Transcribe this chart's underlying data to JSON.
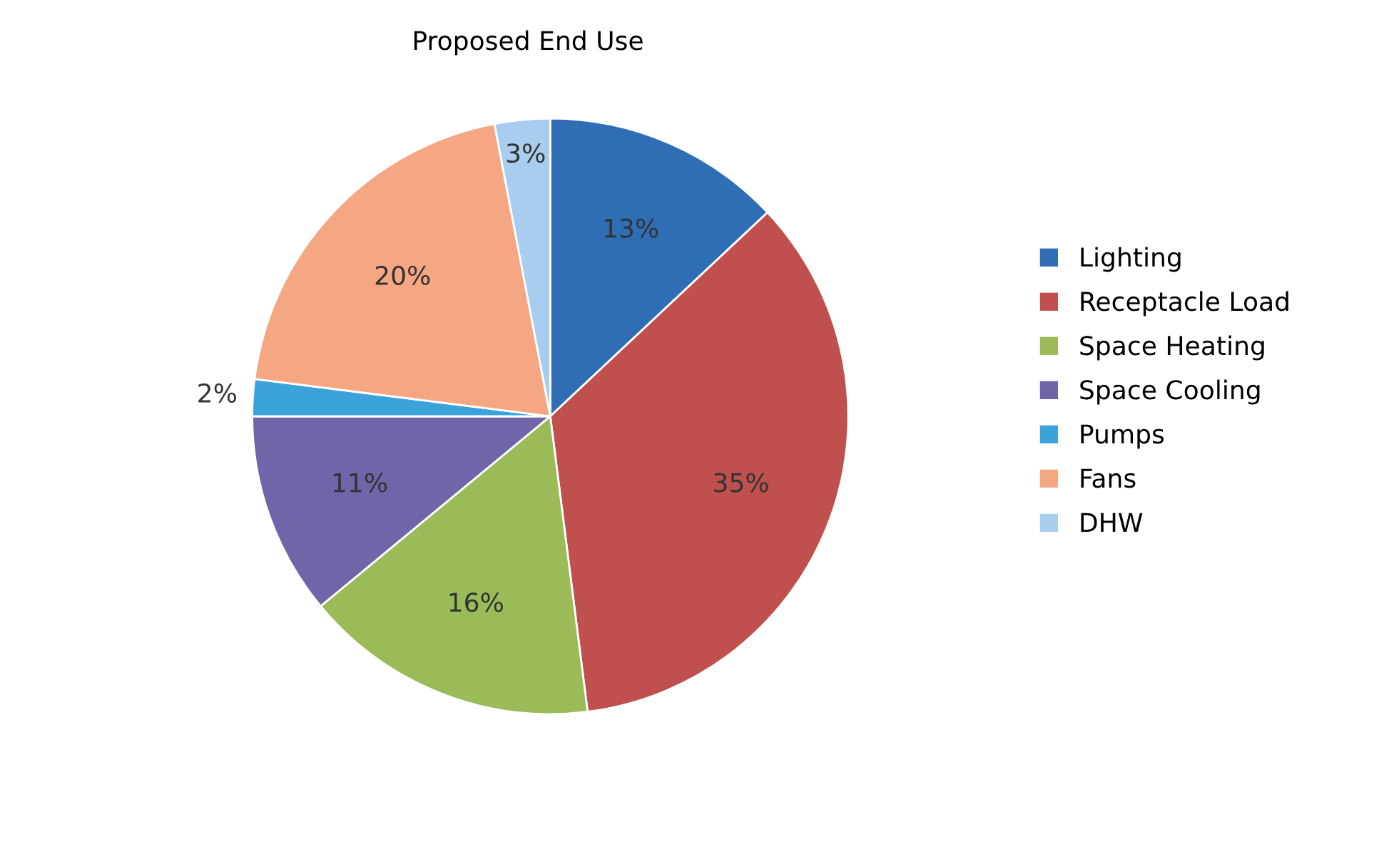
{
  "chart_data": {
    "type": "pie",
    "title": "Proposed End Use",
    "categories": [
      "Lighting",
      "Receptacle Load",
      "Space Heating",
      "Space Cooling",
      "Pumps",
      "Fans",
      "DHW"
    ],
    "values": [
      13,
      35,
      16,
      11,
      2,
      20,
      3
    ],
    "colors": [
      "#2f6eb5",
      "#c0504d",
      "#9bbb59",
      "#7065a8",
      "#3ba3d9",
      "#f5a784",
      "#a9cdef"
    ],
    "legend": "right",
    "value_labels": [
      "13%",
      "35%",
      "16%",
      "11%",
      "2%",
      "20%",
      "3%"
    ]
  }
}
